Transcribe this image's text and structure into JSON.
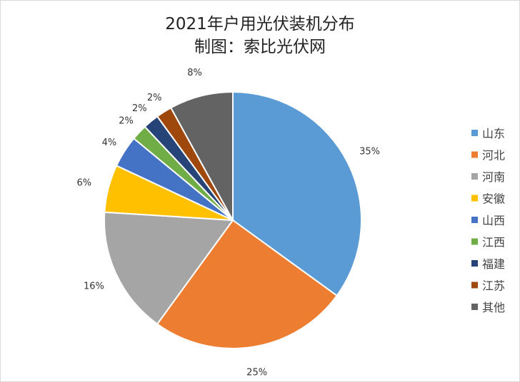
{
  "chart_data": {
    "type": "pie",
    "title": "2021年户用光伏装机分布",
    "subtitle": "制图：索比光伏网",
    "categories": [
      "山东",
      "河北",
      "河南",
      "安徽",
      "山西",
      "江西",
      "福建",
      "江苏",
      "其他"
    ],
    "values": [
      35,
      25,
      16,
      6,
      4,
      2,
      2,
      2,
      8
    ],
    "labels": [
      "35%",
      "25%",
      "16%",
      "6%",
      "4%",
      "2%",
      "2%",
      "2%",
      "8%"
    ],
    "colors": [
      "#5B9BD5",
      "#ED7D31",
      "#A5A5A5",
      "#FFC000",
      "#4472C4",
      "#70AD47",
      "#264478",
      "#9E480E",
      "#636363"
    ],
    "start": "top, clockwise",
    "legend": "right"
  }
}
